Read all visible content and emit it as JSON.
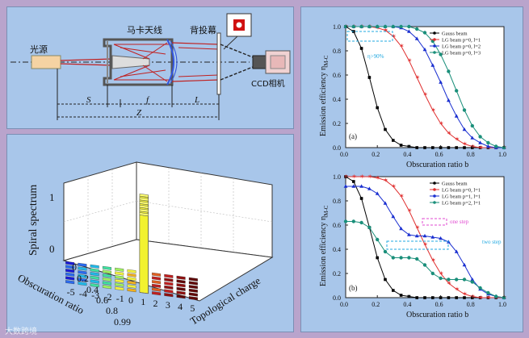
{
  "setup": {
    "source_label": "光源",
    "element_label": "马卡天线",
    "screen_label": "背投幕",
    "camera_label": "CCD相机",
    "dim_s": "S",
    "dim_f": "f",
    "dim_l": "L",
    "dim_z": "Z"
  },
  "spiral": {
    "z_label": "Spiral  spectrum",
    "x_label": "Obscuration ratio",
    "y_label": "Topological charge",
    "z_ticks": [
      "0",
      "1"
    ],
    "ratio_ticks": [
      "0",
      "0.2",
      "0.4",
      "0.6",
      "0.8",
      "0.99"
    ],
    "charge_ticks": [
      "-5",
      "-4",
      "-3",
      "-2",
      "-1",
      "0",
      "1",
      "2",
      "3",
      "4",
      "5"
    ]
  },
  "chart_data": [
    {
      "type": "line",
      "panel_label": "(a)",
      "xlabel": "Obscuration ratio b",
      "ylabel": "Emission efficiency η",
      "ylabel_sub": "M-C",
      "xlim": [
        0,
        1
      ],
      "ylim": [
        0,
        1
      ],
      "xticks": [
        "0.0",
        "0.2",
        "0.4",
        "0.6",
        "0.8",
        "1.0"
      ],
      "yticks": [
        "0.0",
        "0.2",
        "0.4",
        "0.6",
        "0.8",
        "1.0"
      ],
      "annotation": "η>90%",
      "x": [
        0,
        0.05,
        0.1,
        0.15,
        0.2,
        0.25,
        0.3,
        0.35,
        0.4,
        0.45,
        0.5,
        0.55,
        0.6,
        0.65,
        0.7,
        0.75,
        0.8,
        0.85,
        0.9,
        0.95,
        1.0
      ],
      "series": [
        {
          "name": "Gauss beam",
          "values": [
            1.0,
            0.96,
            0.82,
            0.58,
            0.33,
            0.15,
            0.06,
            0.02,
            0.01,
            0,
            0,
            0,
            0,
            0,
            0,
            0,
            0,
            0,
            0,
            0,
            0
          ]
        },
        {
          "name": "LG beam p=0, l=1",
          "values": [
            1.0,
            1.0,
            1.0,
            1.0,
            0.99,
            0.97,
            0.92,
            0.84,
            0.72,
            0.58,
            0.44,
            0.31,
            0.2,
            0.12,
            0.07,
            0.03,
            0.01,
            0,
            0,
            0,
            0
          ]
        },
        {
          "name": "LG beam p=0, l=2",
          "values": [
            1.0,
            1.0,
            1.0,
            1.0,
            1.0,
            1.0,
            1.0,
            0.99,
            0.96,
            0.9,
            0.81,
            0.68,
            0.54,
            0.39,
            0.26,
            0.15,
            0.08,
            0.04,
            0.01,
            0,
            0
          ]
        },
        {
          "name": "LG beam p=0, l=3",
          "values": [
            1.0,
            1.0,
            1.0,
            1.0,
            1.0,
            1.0,
            1.0,
            1.0,
            1.0,
            0.98,
            0.95,
            0.88,
            0.77,
            0.63,
            0.47,
            0.31,
            0.18,
            0.09,
            0.04,
            0.01,
            0
          ]
        }
      ]
    },
    {
      "type": "line",
      "panel_label": "(b)",
      "xlabel": "Obscuration ratio b",
      "ylabel": "Emission efficiency η",
      "ylabel_sub": "M-C",
      "xlim": [
        0,
        1
      ],
      "ylim": [
        0,
        1
      ],
      "xticks": [
        "0.0",
        "0.2",
        "0.4",
        "0.6",
        "0.8",
        "1.0"
      ],
      "yticks": [
        "0.0",
        "0.2",
        "0.4",
        "0.6",
        "0.8",
        "1.0"
      ],
      "annotations": [
        "one step",
        "two step"
      ],
      "x": [
        0,
        0.05,
        0.1,
        0.15,
        0.2,
        0.25,
        0.3,
        0.35,
        0.4,
        0.45,
        0.5,
        0.55,
        0.6,
        0.65,
        0.7,
        0.75,
        0.8,
        0.85,
        0.9,
        0.95,
        1.0
      ],
      "series": [
        {
          "name": "Gauss beam",
          "values": [
            1.0,
            0.96,
            0.82,
            0.58,
            0.33,
            0.15,
            0.06,
            0.02,
            0.01,
            0,
            0,
            0,
            0,
            0,
            0,
            0,
            0,
            0,
            0,
            0,
            0
          ]
        },
        {
          "name": "LG beam p=0, l=1",
          "values": [
            1.0,
            1.0,
            1.0,
            1.0,
            0.99,
            0.97,
            0.92,
            0.84,
            0.72,
            0.58,
            0.44,
            0.31,
            0.2,
            0.12,
            0.07,
            0.03,
            0.01,
            0,
            0,
            0,
            0
          ]
        },
        {
          "name": "LG beam p=1, l=1",
          "values": [
            0.92,
            0.92,
            0.92,
            0.9,
            0.86,
            0.78,
            0.67,
            0.57,
            0.52,
            0.51,
            0.51,
            0.5,
            0.49,
            0.46,
            0.38,
            0.27,
            0.15,
            0.07,
            0.03,
            0.01,
            0
          ]
        },
        {
          "name": "LG beam p=2, l=1",
          "values": [
            0.63,
            0.63,
            0.62,
            0.58,
            0.48,
            0.38,
            0.33,
            0.33,
            0.33,
            0.32,
            0.27,
            0.2,
            0.16,
            0.15,
            0.15,
            0.15,
            0.13,
            0.08,
            0.04,
            0.01,
            0
          ]
        }
      ]
    }
  ],
  "colors": {
    "gauss": "#000000",
    "lg1": "#e03030",
    "lg2": "#1a2fd0",
    "lg3": "#1a8f7a",
    "annotation": "#e04ad0",
    "annotation2": "#20a8e0"
  },
  "watermark": "大数跨境"
}
